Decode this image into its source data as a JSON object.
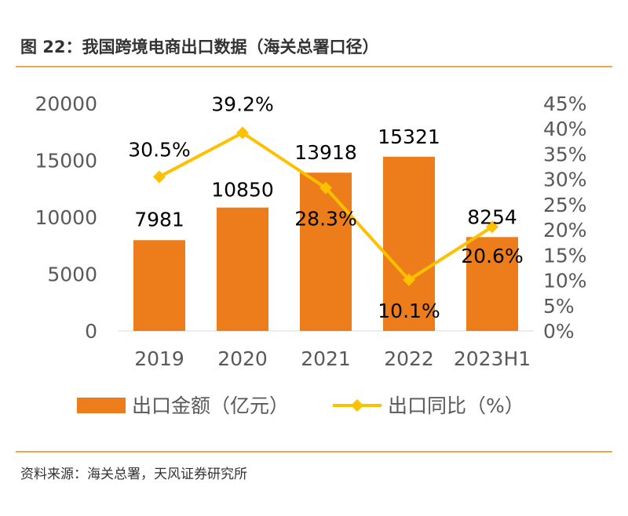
{
  "header": {
    "title": "图 22：我国跨境电商出口数据（海关总署口径）"
  },
  "footer": {
    "source": "资料来源：海关总署，天风证券研究所"
  },
  "colors": {
    "bar": "#ED7D1A",
    "line": "#FFC000",
    "rule": "#F0A64B",
    "axis_text": "#595959",
    "label_text": "#000000"
  },
  "chart_data": {
    "type": "bar",
    "categories": [
      "2019",
      "2020",
      "2021",
      "2022",
      "2023H1"
    ],
    "series": [
      {
        "name": "出口金额（亿元）",
        "type": "bar",
        "axis": "left",
        "values": [
          7981,
          10850,
          13918,
          15321,
          8254
        ],
        "labels": [
          "7981",
          "10850",
          "13918",
          "15321",
          "8254"
        ]
      },
      {
        "name": "出口同比（%）",
        "type": "line",
        "axis": "right",
        "values": [
          30.5,
          39.2,
          28.3,
          10.1,
          20.6
        ],
        "labels": [
          "30.5%",
          "39.2%",
          "28.3%",
          "10.1%",
          "20.6%"
        ]
      }
    ],
    "y_left": {
      "ylim": [
        0,
        20000
      ],
      "ticks": [
        "0",
        "5000",
        "10000",
        "15000",
        "20000"
      ]
    },
    "y_right": {
      "ylim": [
        0,
        45
      ],
      "ticks": [
        "0%",
        "5%",
        "10%",
        "15%",
        "20%",
        "25%",
        "30%",
        "35%",
        "40%",
        "45%"
      ]
    },
    "legend_position": "bottom",
    "grid": false
  }
}
